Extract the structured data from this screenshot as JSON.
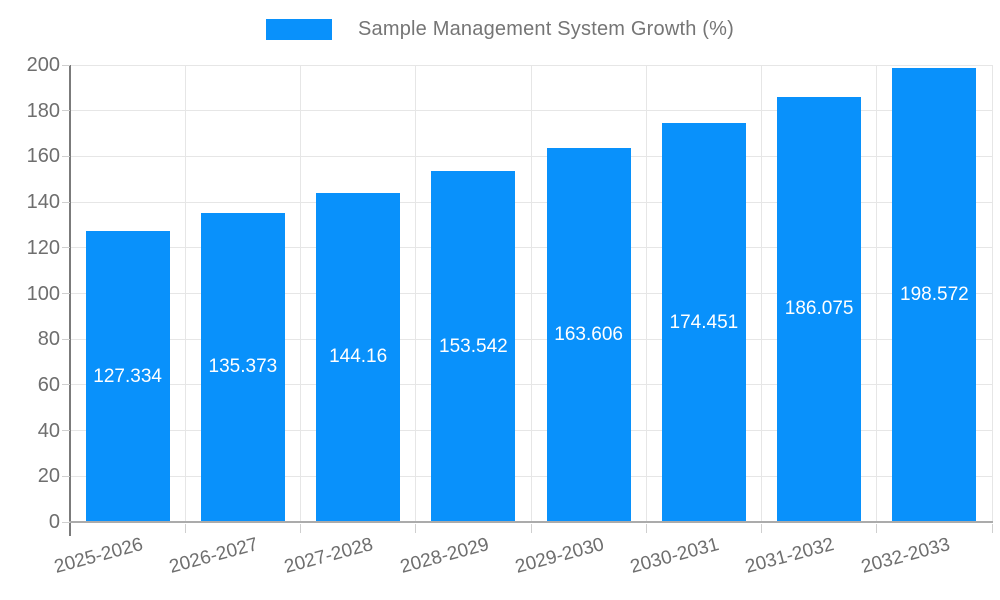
{
  "legend": {
    "label": "Sample Management System Growth (%)"
  },
  "chart_data": {
    "type": "bar",
    "title": "Sample Management System Growth (%)",
    "categories": [
      "2025-2026",
      "2026-2027",
      "2027-2028",
      "2028-2029",
      "2029-2030",
      "2030-2031",
      "2031-2032",
      "2032-2033"
    ],
    "values": [
      127.334,
      135.373,
      144.16,
      153.542,
      163.606,
      174.451,
      186.075,
      198.572
    ],
    "value_labels": [
      "127.334",
      "135.373",
      "144.16",
      "153.542",
      "163.606",
      "174.451",
      "186.075",
      "198.572"
    ],
    "xlabel": "",
    "ylabel": "",
    "ylim": [
      0,
      200
    ],
    "yticks": [
      0,
      20,
      40,
      60,
      80,
      100,
      120,
      140,
      160,
      180,
      200
    ],
    "grid": true,
    "legend_position": "top",
    "colors": {
      "bar": "#0991fb",
      "value_label": "#ffffff",
      "axis_text": "#6e6e6e",
      "gridline": "#e6e6e6",
      "y_axis_line": "#7b7b7b",
      "x_axis_line": "#ababab"
    }
  }
}
